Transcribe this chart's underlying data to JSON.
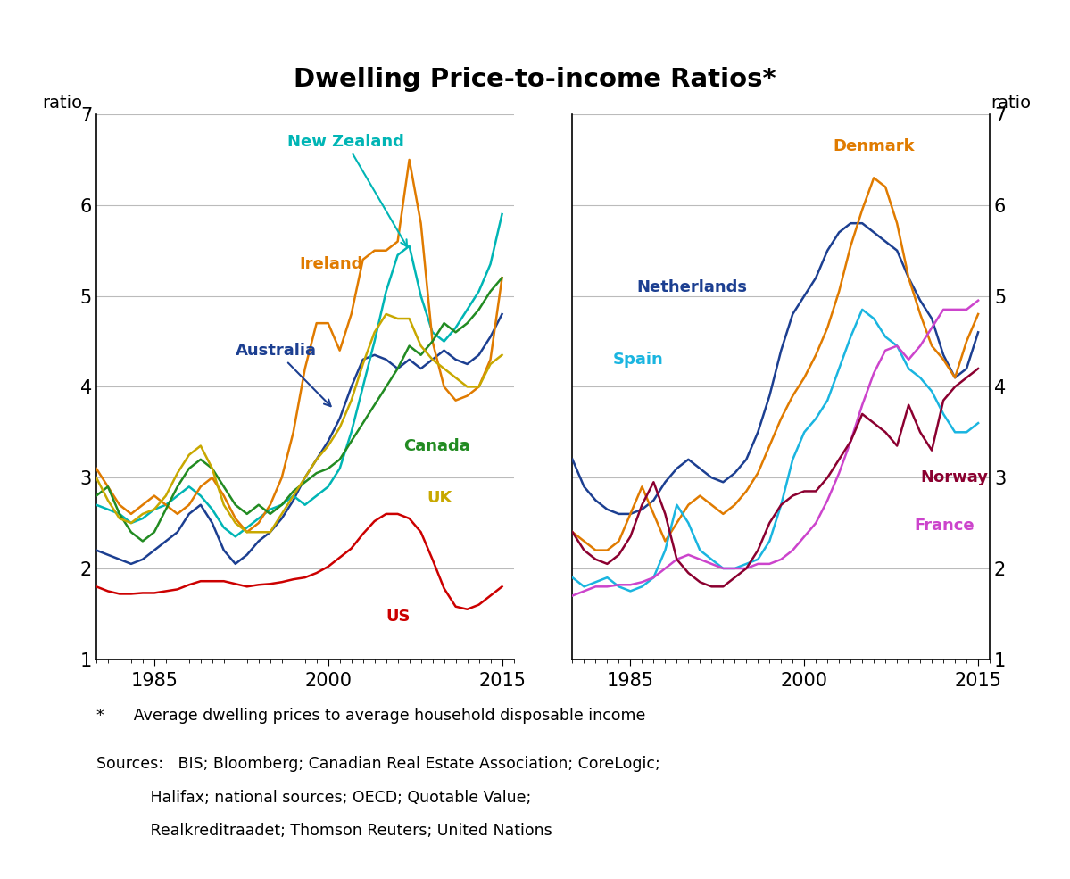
{
  "title": "Dwelling Price-to-income Ratios*",
  "footnote": "*      Average dwelling prices to average household disposable income",
  "sources_line1": "Sources:   BIS; Bloomberg; Canadian Real Estate Association; CoreLogic;",
  "sources_line2": "           Halifax; national sources; OECD; Quotable Value;",
  "sources_line3": "           Realkreditraadet; Thomson Reuters; United Nations",
  "ylim": [
    1,
    7
  ],
  "yticks": [
    1,
    2,
    3,
    4,
    5,
    6,
    7
  ],
  "ylabel": "ratio",
  "left_panel": {
    "countries": [
      "Australia",
      "New Zealand",
      "Ireland",
      "Canada",
      "UK",
      "US"
    ],
    "colors": [
      "#1c3f91",
      "#00b5b5",
      "#e07b00",
      "#228B22",
      "#c8a800",
      "#cc0000"
    ],
    "data": {
      "Australia": {
        "years": [
          1980,
          1981,
          1982,
          1983,
          1984,
          1985,
          1986,
          1987,
          1988,
          1989,
          1990,
          1991,
          1992,
          1993,
          1994,
          1995,
          1996,
          1997,
          1998,
          1999,
          2000,
          2001,
          2002,
          2003,
          2004,
          2005,
          2006,
          2007,
          2008,
          2009,
          2010,
          2011,
          2012,
          2013,
          2014,
          2015
        ],
        "values": [
          2.2,
          2.15,
          2.1,
          2.05,
          2.1,
          2.2,
          2.3,
          2.4,
          2.6,
          2.7,
          2.5,
          2.2,
          2.05,
          2.15,
          2.3,
          2.4,
          2.55,
          2.75,
          3.0,
          3.2,
          3.4,
          3.65,
          4.0,
          4.3,
          4.35,
          4.3,
          4.2,
          4.3,
          4.2,
          4.3,
          4.4,
          4.3,
          4.25,
          4.35,
          4.55,
          4.8
        ]
      },
      "New Zealand": {
        "years": [
          1980,
          1981,
          1982,
          1983,
          1984,
          1985,
          1986,
          1987,
          1988,
          1989,
          1990,
          1991,
          1992,
          1993,
          1994,
          1995,
          1996,
          1997,
          1998,
          1999,
          2000,
          2001,
          2002,
          2003,
          2004,
          2005,
          2006,
          2007,
          2008,
          2009,
          2010,
          2011,
          2012,
          2013,
          2014,
          2015
        ],
        "values": [
          2.7,
          2.65,
          2.6,
          2.5,
          2.55,
          2.65,
          2.7,
          2.8,
          2.9,
          2.8,
          2.65,
          2.45,
          2.35,
          2.45,
          2.55,
          2.65,
          2.7,
          2.8,
          2.7,
          2.8,
          2.9,
          3.1,
          3.5,
          4.0,
          4.5,
          5.05,
          5.45,
          5.55,
          5.0,
          4.6,
          4.5,
          4.65,
          4.85,
          5.05,
          5.35,
          5.9
        ]
      },
      "Ireland": {
        "years": [
          1980,
          1981,
          1982,
          1983,
          1984,
          1985,
          1986,
          1987,
          1988,
          1989,
          1990,
          1991,
          1992,
          1993,
          1994,
          1995,
          1996,
          1997,
          1998,
          1999,
          2000,
          2001,
          2002,
          2003,
          2004,
          2005,
          2006,
          2007,
          2008,
          2009,
          2010,
          2011,
          2012,
          2013,
          2014,
          2015
        ],
        "values": [
          3.1,
          2.9,
          2.7,
          2.6,
          2.7,
          2.8,
          2.7,
          2.6,
          2.7,
          2.9,
          3.0,
          2.8,
          2.55,
          2.4,
          2.5,
          2.7,
          3.0,
          3.5,
          4.2,
          4.7,
          4.7,
          4.4,
          4.8,
          5.4,
          5.5,
          5.5,
          5.6,
          6.5,
          5.8,
          4.5,
          4.0,
          3.85,
          3.9,
          4.0,
          4.3,
          5.2
        ]
      },
      "Canada": {
        "years": [
          1980,
          1981,
          1982,
          1983,
          1984,
          1985,
          1986,
          1987,
          1988,
          1989,
          1990,
          1991,
          1992,
          1993,
          1994,
          1995,
          1996,
          1997,
          1998,
          1999,
          2000,
          2001,
          2002,
          2003,
          2004,
          2005,
          2006,
          2007,
          2008,
          2009,
          2010,
          2011,
          2012,
          2013,
          2014,
          2015
        ],
        "values": [
          2.8,
          2.9,
          2.6,
          2.4,
          2.3,
          2.4,
          2.65,
          2.9,
          3.1,
          3.2,
          3.1,
          2.9,
          2.7,
          2.6,
          2.7,
          2.6,
          2.7,
          2.85,
          2.95,
          3.05,
          3.1,
          3.2,
          3.4,
          3.6,
          3.8,
          4.0,
          4.2,
          4.45,
          4.35,
          4.5,
          4.7,
          4.6,
          4.7,
          4.85,
          5.05,
          5.2
        ]
      },
      "UK": {
        "years": [
          1980,
          1981,
          1982,
          1983,
          1984,
          1985,
          1986,
          1987,
          1988,
          1989,
          1990,
          1991,
          1992,
          1993,
          1994,
          1995,
          1996,
          1997,
          1998,
          1999,
          2000,
          2001,
          2002,
          2003,
          2004,
          2005,
          2006,
          2007,
          2008,
          2009,
          2010,
          2011,
          2012,
          2013,
          2014,
          2015
        ],
        "values": [
          3.0,
          2.75,
          2.55,
          2.5,
          2.6,
          2.65,
          2.8,
          3.05,
          3.25,
          3.35,
          3.1,
          2.7,
          2.5,
          2.4,
          2.4,
          2.4,
          2.6,
          2.8,
          3.0,
          3.2,
          3.35,
          3.55,
          3.85,
          4.25,
          4.6,
          4.8,
          4.75,
          4.75,
          4.45,
          4.3,
          4.2,
          4.1,
          4.0,
          4.0,
          4.25,
          4.35
        ]
      },
      "US": {
        "years": [
          1980,
          1981,
          1982,
          1983,
          1984,
          1985,
          1986,
          1987,
          1988,
          1989,
          1990,
          1991,
          1992,
          1993,
          1994,
          1995,
          1996,
          1997,
          1998,
          1999,
          2000,
          2001,
          2002,
          2003,
          2004,
          2005,
          2006,
          2007,
          2008,
          2009,
          2010,
          2011,
          2012,
          2013,
          2014,
          2015
        ],
        "values": [
          1.8,
          1.75,
          1.72,
          1.72,
          1.73,
          1.73,
          1.75,
          1.77,
          1.82,
          1.86,
          1.86,
          1.86,
          1.83,
          1.8,
          1.82,
          1.83,
          1.85,
          1.88,
          1.9,
          1.95,
          2.02,
          2.12,
          2.22,
          2.38,
          2.52,
          2.6,
          2.6,
          2.55,
          2.4,
          2.1,
          1.78,
          1.58,
          1.55,
          1.6,
          1.7,
          1.8
        ]
      }
    }
  },
  "right_panel": {
    "countries": [
      "Netherlands",
      "Denmark",
      "Spain",
      "France",
      "Norway"
    ],
    "colors": [
      "#1c3f91",
      "#e07b00",
      "#1ab5e0",
      "#cc44cc",
      "#8B0030"
    ],
    "data": {
      "Netherlands": {
        "years": [
          1980,
          1981,
          1982,
          1983,
          1984,
          1985,
          1986,
          1987,
          1988,
          1989,
          1990,
          1991,
          1992,
          1993,
          1994,
          1995,
          1996,
          1997,
          1998,
          1999,
          2000,
          2001,
          2002,
          2003,
          2004,
          2005,
          2006,
          2007,
          2008,
          2009,
          2010,
          2011,
          2012,
          2013,
          2014,
          2015
        ],
        "values": [
          3.2,
          2.9,
          2.75,
          2.65,
          2.6,
          2.6,
          2.65,
          2.75,
          2.95,
          3.1,
          3.2,
          3.1,
          3.0,
          2.95,
          3.05,
          3.2,
          3.5,
          3.9,
          4.4,
          4.8,
          5.0,
          5.2,
          5.5,
          5.7,
          5.8,
          5.8,
          5.7,
          5.6,
          5.5,
          5.2,
          4.95,
          4.75,
          4.35,
          4.1,
          4.2,
          4.6
        ]
      },
      "Denmark": {
        "years": [
          1980,
          1981,
          1982,
          1983,
          1984,
          1985,
          1986,
          1987,
          1988,
          1989,
          1990,
          1991,
          1992,
          1993,
          1994,
          1995,
          1996,
          1997,
          1998,
          1999,
          2000,
          2001,
          2002,
          2003,
          2004,
          2005,
          2006,
          2007,
          2008,
          2009,
          2010,
          2011,
          2012,
          2013,
          2014,
          2015
        ],
        "values": [
          2.4,
          2.3,
          2.2,
          2.2,
          2.3,
          2.6,
          2.9,
          2.6,
          2.3,
          2.5,
          2.7,
          2.8,
          2.7,
          2.6,
          2.7,
          2.85,
          3.05,
          3.35,
          3.65,
          3.9,
          4.1,
          4.35,
          4.65,
          5.05,
          5.55,
          5.95,
          6.3,
          6.2,
          5.8,
          5.2,
          4.8,
          4.45,
          4.3,
          4.1,
          4.5,
          4.8
        ]
      },
      "Spain": {
        "years": [
          1980,
          1981,
          1982,
          1983,
          1984,
          1985,
          1986,
          1987,
          1988,
          1989,
          1990,
          1991,
          1992,
          1993,
          1994,
          1995,
          1996,
          1997,
          1998,
          1999,
          2000,
          2001,
          2002,
          2003,
          2004,
          2005,
          2006,
          2007,
          2008,
          2009,
          2010,
          2011,
          2012,
          2013,
          2014,
          2015
        ],
        "values": [
          1.9,
          1.8,
          1.85,
          1.9,
          1.8,
          1.75,
          1.8,
          1.9,
          2.2,
          2.7,
          2.5,
          2.2,
          2.1,
          2.0,
          2.0,
          2.05,
          2.1,
          2.3,
          2.7,
          3.2,
          3.5,
          3.65,
          3.85,
          4.2,
          4.55,
          4.85,
          4.75,
          4.55,
          4.45,
          4.2,
          4.1,
          3.95,
          3.7,
          3.5,
          3.5,
          3.6
        ]
      },
      "France": {
        "years": [
          1980,
          1981,
          1982,
          1983,
          1984,
          1985,
          1986,
          1987,
          1988,
          1989,
          1990,
          1991,
          1992,
          1993,
          1994,
          1995,
          1996,
          1997,
          1998,
          1999,
          2000,
          2001,
          2002,
          2003,
          2004,
          2005,
          2006,
          2007,
          2008,
          2009,
          2010,
          2011,
          2012,
          2013,
          2014,
          2015
        ],
        "values": [
          1.7,
          1.75,
          1.8,
          1.8,
          1.82,
          1.82,
          1.85,
          1.9,
          2.0,
          2.1,
          2.15,
          2.1,
          2.05,
          2.0,
          2.0,
          2.0,
          2.05,
          2.05,
          2.1,
          2.2,
          2.35,
          2.5,
          2.75,
          3.05,
          3.4,
          3.8,
          4.15,
          4.4,
          4.45,
          4.3,
          4.45,
          4.65,
          4.85,
          4.85,
          4.85,
          4.95
        ]
      },
      "Norway": {
        "years": [
          1980,
          1981,
          1982,
          1983,
          1984,
          1985,
          1986,
          1987,
          1988,
          1989,
          1990,
          1991,
          1992,
          1993,
          1994,
          1995,
          1996,
          1997,
          1998,
          1999,
          2000,
          2001,
          2002,
          2003,
          2004,
          2005,
          2006,
          2007,
          2008,
          2009,
          2010,
          2011,
          2012,
          2013,
          2014,
          2015
        ],
        "values": [
          2.4,
          2.2,
          2.1,
          2.05,
          2.15,
          2.35,
          2.7,
          2.95,
          2.6,
          2.1,
          1.95,
          1.85,
          1.8,
          1.8,
          1.9,
          2.0,
          2.2,
          2.5,
          2.7,
          2.8,
          2.85,
          2.85,
          3.0,
          3.2,
          3.4,
          3.7,
          3.6,
          3.5,
          3.35,
          3.8,
          3.5,
          3.3,
          3.85,
          4.0,
          4.1,
          4.2
        ]
      }
    }
  },
  "xlim": [
    1980,
    2016
  ],
  "xticks": [
    1985,
    2000,
    2015
  ],
  "background_color": "#ffffff",
  "grid_color": "#bbbbbb"
}
